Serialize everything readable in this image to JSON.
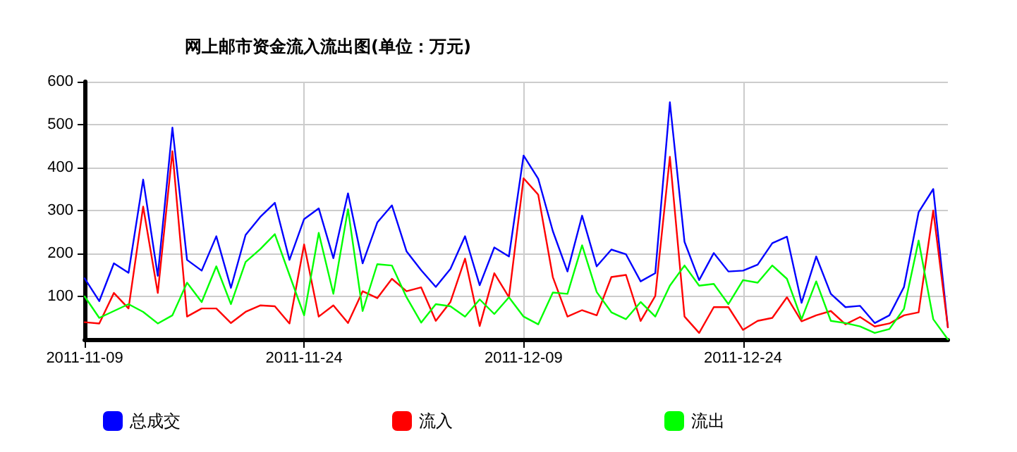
{
  "chart_data": {
    "type": "line",
    "title": "网上邮市资金流入流出图(单位：万元)",
    "x": [
      "2011-11-09",
      "2011-11-10",
      "2011-11-11",
      "2011-11-12",
      "2011-11-13",
      "2011-11-14",
      "2011-11-15",
      "2011-11-16",
      "2011-11-17",
      "2011-11-18",
      "2011-11-19",
      "2011-11-20",
      "2011-11-21",
      "2011-11-22",
      "2011-11-23",
      "2011-11-24",
      "2011-11-25",
      "2011-11-26",
      "2011-11-27",
      "2011-11-28",
      "2011-11-29",
      "2011-11-30",
      "2011-12-01",
      "2011-12-02",
      "2011-12-03",
      "2011-12-04",
      "2011-12-05",
      "2011-12-06",
      "2011-12-07",
      "2011-12-08",
      "2011-12-09",
      "2011-12-10",
      "2011-12-11",
      "2011-12-12",
      "2011-12-13",
      "2011-12-14",
      "2011-12-15",
      "2011-12-16",
      "2011-12-17",
      "2011-12-18",
      "2011-12-19",
      "2011-12-20",
      "2011-12-21",
      "2011-12-22",
      "2011-12-23",
      "2011-12-24",
      "2011-12-25",
      "2011-12-26",
      "2011-12-27",
      "2011-12-28",
      "2011-12-29",
      "2011-12-30",
      "2011-12-31",
      "2012-01-01",
      "2012-01-02",
      "2012-01-03",
      "2012-01-04",
      "2012-01-05",
      "2012-01-06",
      "2012-01-07"
    ],
    "series": [
      {
        "name": "总成交",
        "color": "#0000ff",
        "values": [
          142,
          89,
          177,
          155,
          372,
          148,
          493,
          185,
          160,
          240,
          120,
          243,
          285,
          318,
          185,
          280,
          305,
          189,
          340,
          177,
          272,
          312,
          205,
          161,
          122,
          164,
          240,
          126,
          214,
          193,
          428,
          374,
          252,
          158,
          288,
          170,
          209,
          198,
          135,
          154,
          552,
          227,
          138,
          201,
          158,
          160,
          174,
          224,
          239,
          85,
          193,
          106,
          75,
          78,
          38,
          56,
          122,
          296,
          350,
          28
        ]
      },
      {
        "name": "流入",
        "color": "#ff0000",
        "values": [
          40,
          37,
          108,
          72,
          309,
          108,
          438,
          53,
          72,
          72,
          38,
          64,
          79,
          77,
          37,
          221,
          53,
          79,
          38,
          112,
          96,
          141,
          112,
          121,
          43,
          87,
          188,
          31,
          154,
          98,
          375,
          337,
          145,
          53,
          68,
          56,
          145,
          150,
          43,
          101,
          425,
          53,
          15,
          75,
          75,
          22,
          43,
          50,
          98,
          42,
          56,
          66,
          35,
          52,
          30,
          37,
          56,
          63,
          300,
          28
        ]
      },
      {
        "name": "流出",
        "color": "#00ff00",
        "values": [
          100,
          50,
          66,
          82,
          64,
          37,
          56,
          132,
          87,
          170,
          82,
          180,
          210,
          245,
          150,
          56,
          248,
          106,
          303,
          66,
          175,
          172,
          98,
          39,
          82,
          77,
          53,
          93,
          59,
          98,
          53,
          35,
          109,
          106,
          219,
          110,
          63,
          47,
          87,
          53,
          125,
          172,
          125,
          129,
          82,
          138,
          132,
          172,
          141,
          47,
          135,
          43,
          38,
          30,
          15,
          24,
          71,
          230,
          47,
          0
        ]
      }
    ],
    "xlim": [
      "2011-11-09",
      "2012-01-07"
    ],
    "xticks": [
      "2011-11-09",
      "2011-11-24",
      "2011-12-09",
      "2011-12-24"
    ],
    "ylim": [
      0,
      600
    ],
    "yticks": [
      100,
      200,
      300,
      400,
      500,
      600
    ],
    "grid": true,
    "legend": "bottom",
    "marker": "none",
    "line_style": "solid"
  }
}
